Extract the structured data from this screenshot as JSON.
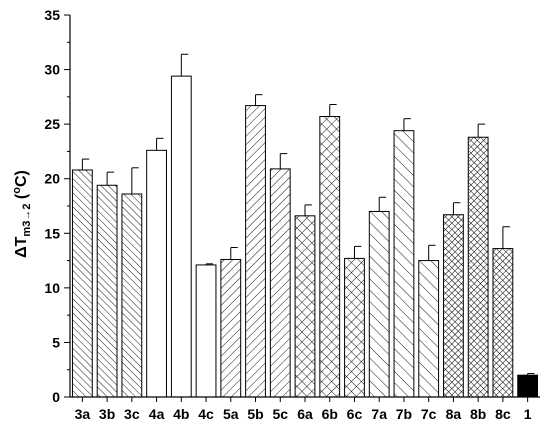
{
  "chart_data": {
    "type": "bar",
    "categories": [
      "3a",
      "3b",
      "3c",
      "4a",
      "4b",
      "4c",
      "5a",
      "5b",
      "5c",
      "6a",
      "6b",
      "6c",
      "7a",
      "7b",
      "7c",
      "8a",
      "8b",
      "8c",
      "1"
    ],
    "values": [
      20.8,
      19.4,
      18.6,
      22.6,
      29.4,
      12.1,
      12.6,
      26.7,
      20.9,
      16.6,
      25.7,
      12.7,
      17.0,
      24.4,
      12.5,
      16.7,
      23.8,
      13.6,
      2.0
    ],
    "errors": [
      1.0,
      1.2,
      2.4,
      1.1,
      2.0,
      0.1,
      1.1,
      1.0,
      1.4,
      1.0,
      1.1,
      1.1,
      1.3,
      1.1,
      1.4,
      1.1,
      1.2,
      2.0,
      0.15
    ],
    "patterns": [
      "diag-back",
      "diag-back",
      "diag-back",
      "none",
      "none",
      "none",
      "diag-fwd",
      "diag-fwd",
      "diag-fwd",
      "cross",
      "cross",
      "cross",
      "diag-back-wide",
      "diag-back-wide",
      "diag-back-wide",
      "cross-dense",
      "cross-dense",
      "cross-dense",
      "solid"
    ],
    "ylabel": "ΔT",
    "ylabel_sub": "m3→2",
    "ylabel_unit": " (",
    "ylabel_sup": "o",
    "ylabel_end": "C)",
    "ylim": [
      0,
      35
    ],
    "yticks": [
      0,
      5,
      10,
      15,
      20,
      25,
      30,
      35
    ],
    "grid": false,
    "legend": "none"
  }
}
